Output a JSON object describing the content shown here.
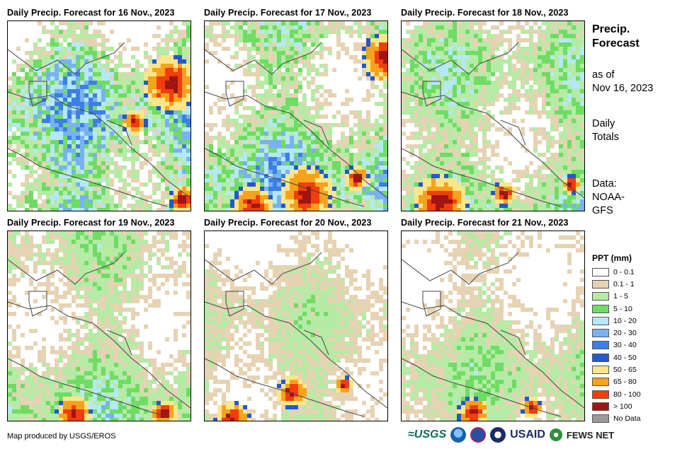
{
  "panels": [
    {
      "title": "Daily Precip. Forecast for 16 Nov., 2023"
    },
    {
      "title": "Daily Precip. Forecast for 17 Nov., 2023"
    },
    {
      "title": "Daily Precip. Forecast for 18 Nov., 2023"
    },
    {
      "title": "Daily Precip. Forecast for 19 Nov., 2023"
    },
    {
      "title": "Daily Precip. Forecast for 20 Nov., 2023"
    },
    {
      "title": "Daily Precip. Forecast for 21 Nov., 2023"
    }
  ],
  "sidebar": {
    "title_line1": "Precip.",
    "title_line2": "Forecast",
    "asof_line1": "as of",
    "asof_line2": "Nov 16, 2023",
    "totals_line1": "Daily",
    "totals_line2": "Totals",
    "source_line1": "Data:",
    "source_line2": "NOAA-",
    "source_line3": "GFS"
  },
  "legend": {
    "title": "PPT (mm)",
    "items": [
      {
        "label": "0 - 0.1",
        "color": "#ffffff"
      },
      {
        "label": "0.1 - 1",
        "color": "#e6d3b3"
      },
      {
        "label": "1 - 5",
        "color": "#b5eba5"
      },
      {
        "label": "5 - 10",
        "color": "#6fdc64"
      },
      {
        "label": "10 - 20",
        "color": "#b5e8f5"
      },
      {
        "label": "20 - 30",
        "color": "#78b2f0"
      },
      {
        "label": "30 - 40",
        "color": "#3c7fe6"
      },
      {
        "label": "40 - 50",
        "color": "#2358cf"
      },
      {
        "label": "50 - 65",
        "color": "#fde68a"
      },
      {
        "label": "65 - 80",
        "color": "#f7a21c"
      },
      {
        "label": "80 - 100",
        "color": "#f23d0c"
      },
      {
        "label": "> 100",
        "color": "#a11414"
      },
      {
        "label": "No Data",
        "color": "#9a9a9a"
      }
    ]
  },
  "footer": {
    "credit": "Map produced by USGS/EROS",
    "logo_usgs": "≈USGS",
    "logo_usaid": "USAID",
    "logo_fews": "FEWS NET"
  }
}
